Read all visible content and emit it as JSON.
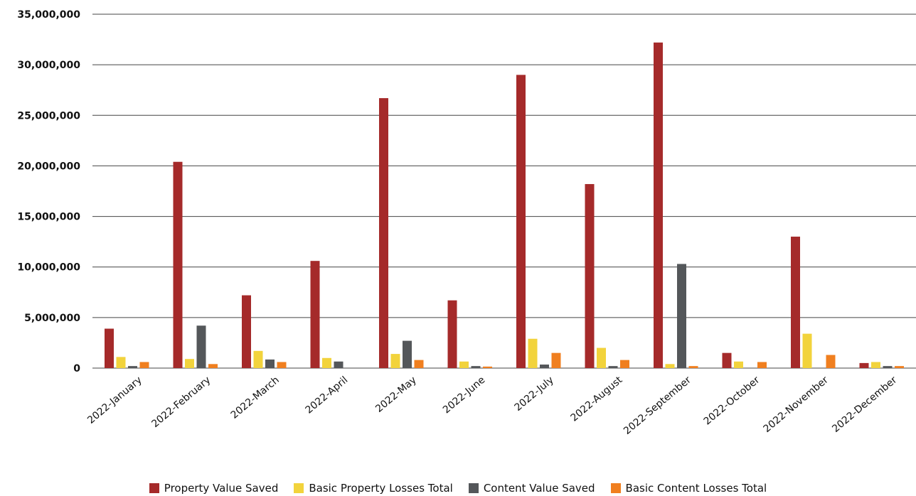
{
  "chart_data": {
    "type": "bar",
    "title": "",
    "xlabel": "",
    "ylabel": "",
    "ylim": [
      0,
      35000000
    ],
    "yticks": [
      0,
      5000000,
      10000000,
      15000000,
      20000000,
      25000000,
      30000000,
      35000000
    ],
    "ytick_labels": [
      "0",
      "5,000,000",
      "10,000,000",
      "15,000,000",
      "20,000,000",
      "25,000,000",
      "30,000,000",
      "35,000,000"
    ],
    "grid": true,
    "legend_position": "bottom",
    "categories": [
      "2022-January",
      "2022-February",
      "2022-March",
      "2022-April",
      "2022-May",
      "2022-June",
      "2022-July",
      "2022-August",
      "2022-September",
      "2022-October",
      "2022-November",
      "2022-December"
    ],
    "series": [
      {
        "name": "Property Value Saved",
        "color": "#a52a2a",
        "values": [
          3900000,
          20400000,
          7200000,
          10600000,
          26700000,
          6700000,
          29000000,
          18200000,
          32200000,
          1500000,
          13000000,
          500000
        ]
      },
      {
        "name": "Basic Property Losses Total",
        "color": "#f2d33c",
        "values": [
          1100000,
          900000,
          1700000,
          1000000,
          1400000,
          650000,
          2900000,
          2000000,
          400000,
          650000,
          3400000,
          600000
        ]
      },
      {
        "name": "Content Value Saved",
        "color": "#54575a",
        "values": [
          200000,
          4200000,
          850000,
          650000,
          2700000,
          200000,
          350000,
          200000,
          10300000,
          0,
          0,
          200000
        ]
      },
      {
        "name": "Basic Content Losses Total",
        "color": "#f07f1f",
        "values": [
          600000,
          400000,
          600000,
          0,
          800000,
          150000,
          1500000,
          800000,
          200000,
          600000,
          1300000,
          200000
        ]
      }
    ]
  }
}
